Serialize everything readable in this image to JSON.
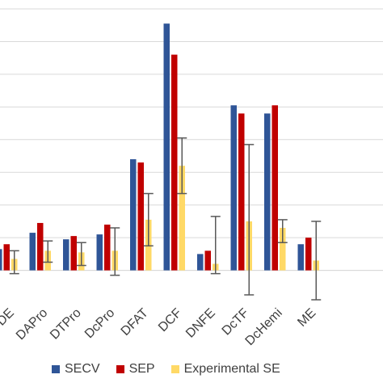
{
  "chart_data": {
    "type": "bar",
    "categories": [
      "DE",
      "DAPro",
      "DTPro",
      "DcPro",
      "DFAT",
      "DCF",
      "DNFE",
      "DcTF",
      "DcHemi",
      "ME"
    ],
    "series": [
      {
        "name": "SECV",
        "color": "#2F5597",
        "values": [
          0.65,
          1.15,
          0.95,
          1.1,
          3.4,
          7.55,
          0.5,
          5.05,
          4.8,
          0.8
        ]
      },
      {
        "name": "SEP",
        "color": "#C00000",
        "values": [
          0.8,
          1.45,
          1.05,
          1.4,
          3.3,
          6.6,
          0.6,
          4.8,
          5.05,
          1.0
        ]
      },
      {
        "name": "Experimental SE",
        "color": "#FFD966",
        "values": [
          0.35,
          0.6,
          0.55,
          0.6,
          1.55,
          3.2,
          0.2,
          1.5,
          1.3,
          0.3
        ]
      }
    ],
    "error_bars": {
      "series": "Experimental SE",
      "low": [
        -0.1,
        0.25,
        0.15,
        -0.15,
        0.75,
        2.35,
        -0.1,
        -0.75,
        0.85,
        -0.9
      ],
      "high": [
        0.6,
        0.9,
        0.85,
        1.3,
        2.35,
        4.05,
        1.65,
        3.85,
        1.55,
        1.5
      ]
    },
    "ylim": [
      -0.9,
      8.0
    ],
    "grid": true,
    "legend_position": "bottom"
  }
}
